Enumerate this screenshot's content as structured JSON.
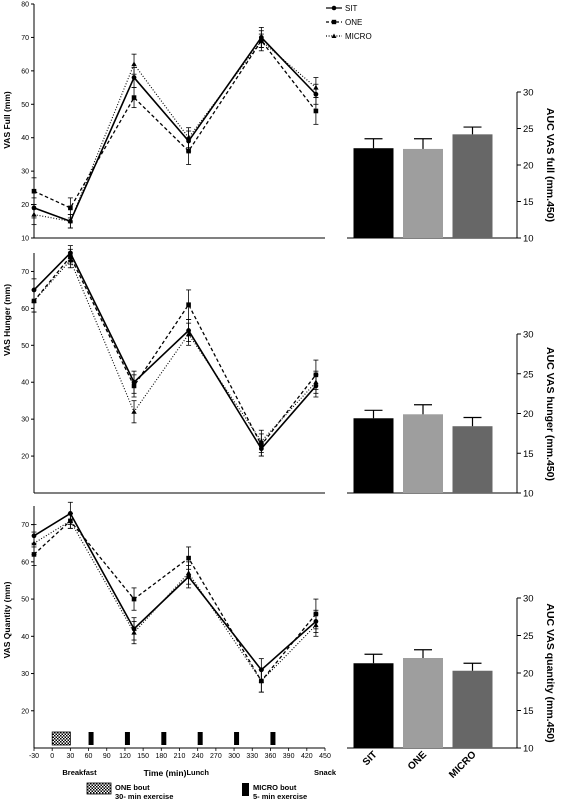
{
  "legend": {
    "entries": [
      {
        "name": "SIT",
        "marker": "circle",
        "dash": "solid"
      },
      {
        "name": "ONE",
        "marker": "square",
        "dash": "dashed"
      },
      {
        "name": "MICRO",
        "marker": "triangle",
        "dash": "dotted"
      }
    ]
  },
  "x_axis": {
    "label": "Time (min)",
    "ticks": [
      -30,
      0,
      30,
      60,
      90,
      120,
      150,
      180,
      210,
      240,
      270,
      300,
      330,
      360,
      390,
      420,
      450
    ],
    "range": [
      -30,
      450
    ]
  },
  "meals": [
    {
      "label": "Breakfast",
      "x": 45
    },
    {
      "label": "Lunch",
      "x": 240
    },
    {
      "label": "Snack",
      "x": 450
    }
  ],
  "exercise_legend": {
    "one_label": "ONE bout",
    "one_sub": "30- min exercise",
    "micro_label": "MICRO bout",
    "micro_sub": "5- min exercise"
  },
  "exercise_blocks": {
    "one": [
      [
        0,
        30
      ]
    ],
    "micro": [
      [
        60,
        65
      ],
      [
        120,
        125
      ],
      [
        180,
        185
      ],
      [
        240,
        245
      ],
      [
        300,
        305
      ],
      [
        360,
        365
      ]
    ]
  },
  "bar_categories": [
    "SIT",
    "ONE",
    "MICRO"
  ],
  "bar_colors": [
    "#000000",
    "#9e9e9e",
    "#676767"
  ],
  "chart_data": [
    {
      "id": "vas-full-time",
      "type": "line",
      "ylabel": "VAS Full (mm)",
      "ylim": [
        10,
        80
      ],
      "yticks": [
        10,
        20,
        30,
        40,
        50,
        60,
        70,
        80
      ],
      "x": [
        -30,
        30,
        135,
        225,
        345,
        435
      ],
      "series": [
        {
          "name": "SIT",
          "values": [
            19,
            15,
            58,
            39,
            70,
            53
          ],
          "errors": [
            3,
            2,
            3,
            3,
            3,
            3
          ]
        },
        {
          "name": "ONE",
          "values": [
            24,
            19,
            52,
            36,
            69,
            48
          ],
          "errors": [
            4,
            3,
            3,
            4,
            2,
            4
          ]
        },
        {
          "name": "MICRO",
          "values": [
            17,
            15,
            62,
            40,
            69,
            55
          ],
          "errors": [
            3,
            2,
            3,
            3,
            3,
            3
          ]
        }
      ]
    },
    {
      "id": "vas-full-auc",
      "type": "bar",
      "ylabel": "AUC VAS full (mm.450)",
      "ylim": [
        10,
        30
      ],
      "yticks": [
        10,
        15,
        20,
        25,
        30
      ],
      "categories": [
        "SIT",
        "ONE",
        "MICRO"
      ],
      "values": [
        22.3,
        22.2,
        24.2
      ],
      "errors": [
        1.3,
        1.4,
        1.0
      ]
    },
    {
      "id": "vas-hunger-time",
      "type": "line",
      "ylabel": "VAS Hunger (mm)",
      "ylim": [
        10,
        75
      ],
      "yticks": [
        20,
        30,
        40,
        50,
        60,
        70
      ],
      "x": [
        -30,
        30,
        135,
        225,
        345,
        435
      ],
      "series": [
        {
          "name": "SIT",
          "values": [
            65,
            75,
            40,
            54,
            22,
            39
          ],
          "errors": [
            3,
            2,
            3,
            3,
            2,
            3
          ]
        },
        {
          "name": "ONE",
          "values": [
            62,
            74,
            39,
            61,
            23,
            42
          ],
          "errors": [
            3,
            2,
            3,
            4,
            3,
            4
          ]
        },
        {
          "name": "MICRO",
          "values": [
            62,
            73,
            32,
            53,
            24,
            40
          ],
          "errors": [
            3,
            2,
            3,
            3,
            3,
            3
          ]
        }
      ]
    },
    {
      "id": "vas-hunger-auc",
      "type": "bar",
      "ylabel": "AUC VAS hunger (mm.450)",
      "ylim": [
        10,
        30
      ],
      "yticks": [
        10,
        15,
        20,
        25,
        30
      ],
      "categories": [
        "SIT",
        "ONE",
        "MICRO"
      ],
      "values": [
        19.4,
        19.9,
        18.4
      ],
      "errors": [
        1.0,
        1.2,
        1.1
      ]
    },
    {
      "id": "vas-quantity-time",
      "type": "line",
      "ylabel": "VAS Quantity (mm)",
      "ylim": [
        10,
        75
      ],
      "yticks": [
        20,
        30,
        40,
        50,
        60,
        70
      ],
      "x": [
        -30,
        30,
        135,
        225,
        345,
        435
      ],
      "series": [
        {
          "name": "SIT",
          "values": [
            67,
            73,
            42,
            56,
            31,
            44
          ],
          "errors": [
            3,
            3,
            3,
            3,
            3,
            3
          ]
        },
        {
          "name": "ONE",
          "values": [
            62,
            71,
            50,
            61,
            28,
            46
          ],
          "errors": [
            3,
            2,
            3,
            3,
            3,
            4
          ]
        },
        {
          "name": "MICRO",
          "values": [
            65,
            71,
            41,
            57,
            28,
            43
          ],
          "errors": [
            3,
            2,
            3,
            3,
            3,
            3
          ]
        }
      ]
    },
    {
      "id": "vas-quantity-auc",
      "type": "bar",
      "ylabel": "AUC VAS quantity (mm.450)",
      "ylim": [
        10,
        30
      ],
      "yticks": [
        10,
        15,
        20,
        25,
        30
      ],
      "categories": [
        "SIT",
        "ONE",
        "MICRO"
      ],
      "values": [
        21.3,
        22.0,
        20.3
      ],
      "errors": [
        1.2,
        1.1,
        1.0
      ]
    }
  ]
}
